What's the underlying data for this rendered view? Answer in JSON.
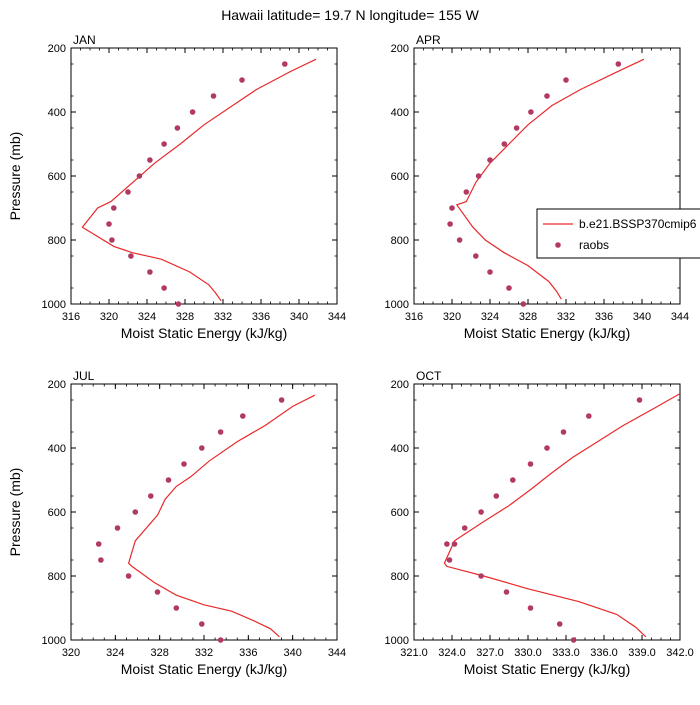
{
  "title": "Hawaii  latitude= 19.7 N longitude= 155 W",
  "legend": {
    "entries": [
      {
        "label": "b.e21.BSSP370cmip6",
        "kind": "line",
        "color": "#e8292b"
      },
      {
        "label": "raobs",
        "kind": "marker",
        "color": "#b13a63"
      }
    ]
  },
  "colors": {
    "model": "#e8292b",
    "obs": "#b13a63"
  },
  "chart_data": [
    {
      "type": "line",
      "panel": "JAN",
      "xlabel": "Moist Static Energy (kJ/kg)",
      "ylabel": "Pressure (mb)",
      "xlim": [
        316,
        344
      ],
      "xticks": [
        316,
        320,
        324,
        328,
        332,
        336,
        340,
        344
      ],
      "xtick_labels": [
        "316",
        "320",
        "324",
        "328",
        "332",
        "336",
        "340",
        "344"
      ],
      "ylim": [
        1000,
        200
      ],
      "yticks": [
        200,
        400,
        600,
        800,
        1000
      ],
      "ytick_labels": [
        "200",
        "400",
        "600",
        "800",
        "1000"
      ],
      "series": [
        {
          "name": "b.e21.BSSP370cmip6",
          "style": "line",
          "x": [
            341.8,
            339.0,
            335.5,
            333.0,
            330.0,
            327.5,
            324.8,
            322.5,
            320.2,
            318.8,
            317.2,
            320.5,
            322.5,
            325.5,
            328.5,
            330.5,
            331.2,
            331.8
          ],
          "y": [
            235,
            275,
            330,
            380,
            440,
            500,
            560,
            620,
            680,
            700,
            760,
            820,
            840,
            860,
            900,
            940,
            965,
            990
          ]
        },
        {
          "name": "raobs",
          "style": "markers",
          "x": [
            338.5,
            334.0,
            331.0,
            328.8,
            327.2,
            325.8,
            324.3,
            323.2,
            322.0,
            320.5,
            320.0,
            320.3,
            322.3,
            324.3,
            325.8,
            327.3
          ],
          "y": [
            250,
            300,
            350,
            400,
            450,
            500,
            550,
            600,
            650,
            700,
            750,
            800,
            850,
            900,
            950,
            1000
          ]
        }
      ]
    },
    {
      "type": "line",
      "panel": "APR",
      "xlabel": "Moist Static Energy (kJ/kg)",
      "ylabel": "",
      "xlim": [
        316,
        344
      ],
      "xticks": [
        316,
        320,
        324,
        328,
        332,
        336,
        340,
        344
      ],
      "xtick_labels": [
        "316",
        "320",
        "324",
        "328",
        "332",
        "336",
        "340",
        "344"
      ],
      "ylim": [
        1000,
        200
      ],
      "yticks": [
        200,
        400,
        600,
        800,
        1000
      ],
      "ytick_labels": [
        "200",
        "400",
        "600",
        "800",
        "1000"
      ],
      "series": [
        {
          "name": "b.e21.BSSP370cmip6",
          "style": "line",
          "x": [
            340.2,
            337.0,
            333.5,
            330.5,
            328.0,
            326.0,
            324.0,
            322.5,
            321.5,
            320.5,
            322.2,
            323.5,
            325.5,
            328.0,
            330.2,
            331.0,
            331.5
          ],
          "y": [
            235,
            280,
            330,
            380,
            440,
            500,
            560,
            620,
            680,
            690,
            760,
            800,
            840,
            880,
            930,
            960,
            985
          ]
        },
        {
          "name": "raobs",
          "style": "markers",
          "x": [
            337.5,
            332.0,
            330.0,
            328.3,
            326.8,
            325.5,
            324.0,
            322.8,
            321.5,
            320.0,
            319.8,
            320.8,
            322.5,
            324.0,
            326.0,
            327.5
          ],
          "y": [
            250,
            300,
            350,
            400,
            450,
            500,
            550,
            600,
            650,
            700,
            750,
            800,
            850,
            900,
            950,
            1000
          ]
        }
      ]
    },
    {
      "type": "line",
      "panel": "JUL",
      "xlabel": "Moist Static Energy (kJ/kg)",
      "ylabel": "Pressure (mb)",
      "xlim": [
        320,
        344
      ],
      "xticks": [
        320,
        324,
        328,
        332,
        336,
        340,
        344
      ],
      "xtick_labels": [
        "320",
        "324",
        "328",
        "332",
        "336",
        "340",
        "344"
      ],
      "ylim": [
        1000,
        200
      ],
      "yticks": [
        200,
        400,
        600,
        800,
        1000
      ],
      "ytick_labels": [
        "200",
        "400",
        "600",
        "800",
        "1000"
      ],
      "series": [
        {
          "name": "b.e21.BSSP370cmip6",
          "style": "line",
          "x": [
            342.0,
            340.0,
            337.5,
            335.0,
            332.5,
            330.8,
            329.5,
            328.5,
            327.8,
            325.8,
            325.2,
            325.5,
            327.5,
            329.5,
            332.0,
            334.5,
            336.5,
            338.0,
            338.8
          ],
          "y": [
            235,
            270,
            330,
            380,
            440,
            490,
            520,
            560,
            610,
            690,
            760,
            770,
            820,
            860,
            890,
            910,
            940,
            965,
            990
          ]
        },
        {
          "name": "raobs",
          "style": "markers",
          "x": [
            339.0,
            335.5,
            333.5,
            331.8,
            330.2,
            328.8,
            327.2,
            325.8,
            324.2,
            322.5,
            322.7,
            325.2,
            327.8,
            329.5,
            331.8,
            333.5
          ],
          "y": [
            250,
            300,
            350,
            400,
            450,
            500,
            550,
            600,
            650,
            700,
            750,
            800,
            850,
            900,
            950,
            1000
          ]
        }
      ]
    },
    {
      "type": "line",
      "panel": "OCT",
      "xlabel": "Moist Static Energy (kJ/kg)",
      "ylabel": "",
      "xlim": [
        321,
        342
      ],
      "xticks": [
        321,
        324,
        327,
        330,
        333,
        336,
        339,
        342
      ],
      "xtick_labels": [
        "321.0",
        "324.0",
        "327.0",
        "330.0",
        "333.0",
        "336.0",
        "339.0",
        "342.0"
      ],
      "ylim": [
        1000,
        200
      ],
      "yticks": [
        200,
        400,
        600,
        800,
        1000
      ],
      "ytick_labels": [
        "200",
        "400",
        "600",
        "800",
        "1000"
      ],
      "series": [
        {
          "name": "b.e21.BSSP370cmip6",
          "style": "line",
          "x": [
            342.0,
            340.0,
            337.5,
            335.5,
            333.5,
            331.8,
            330.2,
            328.5,
            326.5,
            324.2,
            323.4,
            323.6,
            326.5,
            330.0,
            334.0,
            337.0,
            338.5,
            339.3
          ],
          "y": [
            230,
            275,
            330,
            380,
            430,
            480,
            530,
            580,
            630,
            690,
            760,
            770,
            800,
            840,
            880,
            920,
            960,
            990
          ]
        },
        {
          "name": "raobs",
          "style": "markers",
          "x": [
            338.8,
            334.8,
            332.8,
            331.5,
            330.2,
            328.8,
            327.5,
            326.3,
            325.0,
            324.2,
            323.6,
            323.8,
            326.3,
            328.3,
            330.2,
            332.5,
            333.6
          ],
          "y": [
            250,
            300,
            350,
            400,
            450,
            500,
            550,
            600,
            650,
            700,
            700,
            750,
            800,
            850,
            900,
            950,
            1000
          ]
        }
      ]
    }
  ]
}
